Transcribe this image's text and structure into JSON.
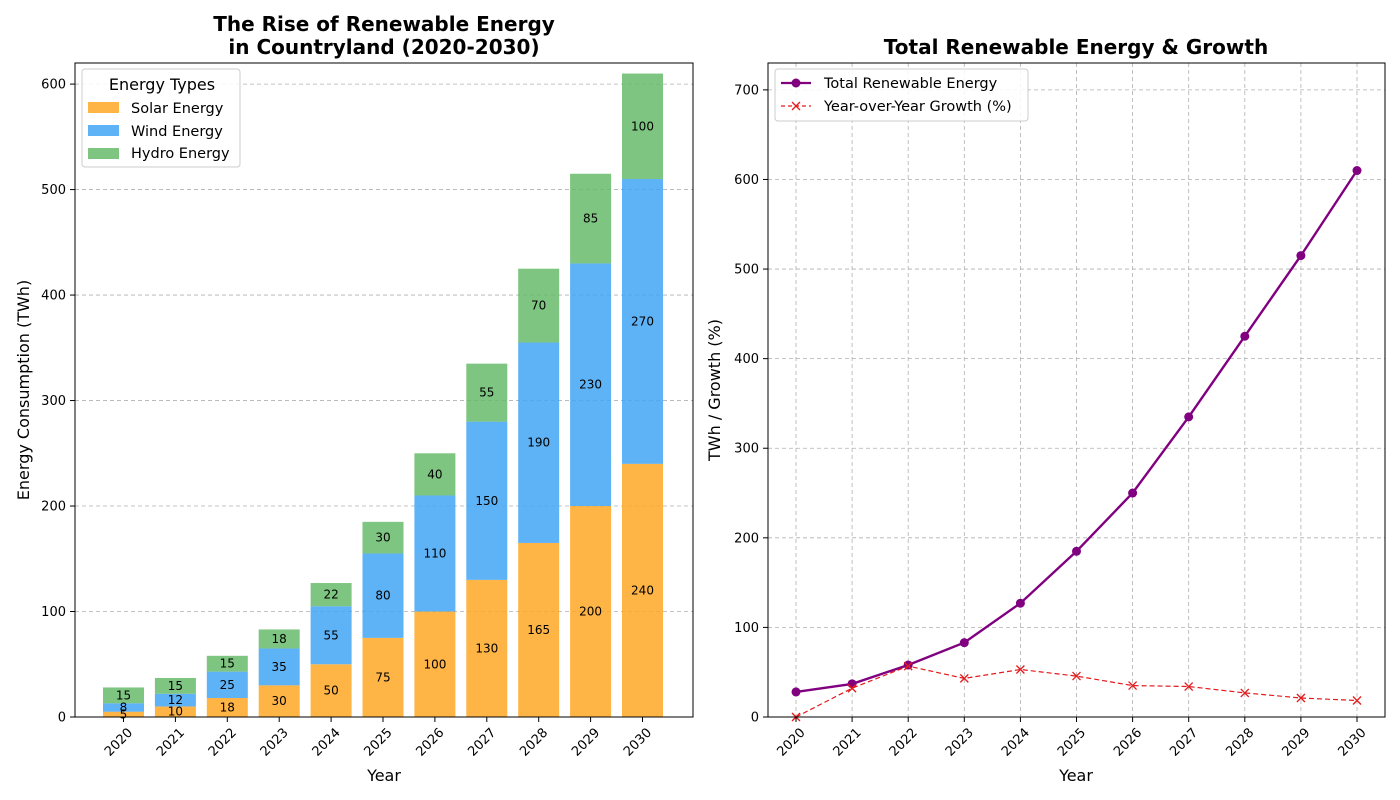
{
  "chart_data": [
    {
      "type": "bar",
      "stacked": true,
      "title_line1": "The Rise of Renewable Energy",
      "title_line2": "in Countryland (2020-2030)",
      "xlabel": "Year",
      "ylabel": "Energy Consumption (TWh)",
      "ylim": [
        0,
        620
      ],
      "yticks": [
        0,
        100,
        200,
        300,
        400,
        500,
        600
      ],
      "grid": "y-dashed",
      "legend_title": "Energy Types",
      "legend_position": "top-left",
      "categories": [
        "2020",
        "2021",
        "2022",
        "2023",
        "2024",
        "2025",
        "2026",
        "2027",
        "2028",
        "2029",
        "2030"
      ],
      "series": [
        {
          "name": "Solar Energy",
          "color": "#FFA726",
          "values": [
            5,
            10,
            18,
            30,
            50,
            75,
            100,
            130,
            165,
            200,
            240
          ]
        },
        {
          "name": "Wind Energy",
          "color": "#42A5F5",
          "values": [
            8,
            12,
            25,
            35,
            55,
            80,
            110,
            150,
            190,
            230,
            270
          ]
        },
        {
          "name": "Hydro Energy",
          "color": "#66BB6A",
          "values": [
            15,
            15,
            15,
            18,
            22,
            30,
            40,
            55,
            70,
            85,
            100
          ]
        }
      ]
    },
    {
      "type": "line",
      "title": "Total Renewable Energy & Growth",
      "xlabel": "Year",
      "ylabel": "TWh / Growth (%)",
      "ylim": [
        0,
        730
      ],
      "yticks": [
        0,
        100,
        200,
        300,
        400,
        500,
        600,
        700
      ],
      "grid": "both-dashed",
      "legend_position": "top-left",
      "x": [
        "2020",
        "2021",
        "2022",
        "2023",
        "2024",
        "2025",
        "2026",
        "2027",
        "2028",
        "2029",
        "2030"
      ],
      "series": [
        {
          "name": "Total Renewable Energy",
          "color": "#800080",
          "marker": "circle",
          "style": "solid",
          "values": [
            28,
            37,
            58,
            83,
            127,
            185,
            250,
            335,
            425,
            515,
            610
          ]
        },
        {
          "name": "Year-over-Year Growth (%)",
          "color": "#E41A1C",
          "marker": "x",
          "style": "dashed",
          "values": [
            0,
            32.1,
            56.8,
            43.1,
            53.0,
            45.7,
            35.1,
            34.0,
            26.9,
            21.2,
            18.4
          ]
        }
      ]
    }
  ]
}
